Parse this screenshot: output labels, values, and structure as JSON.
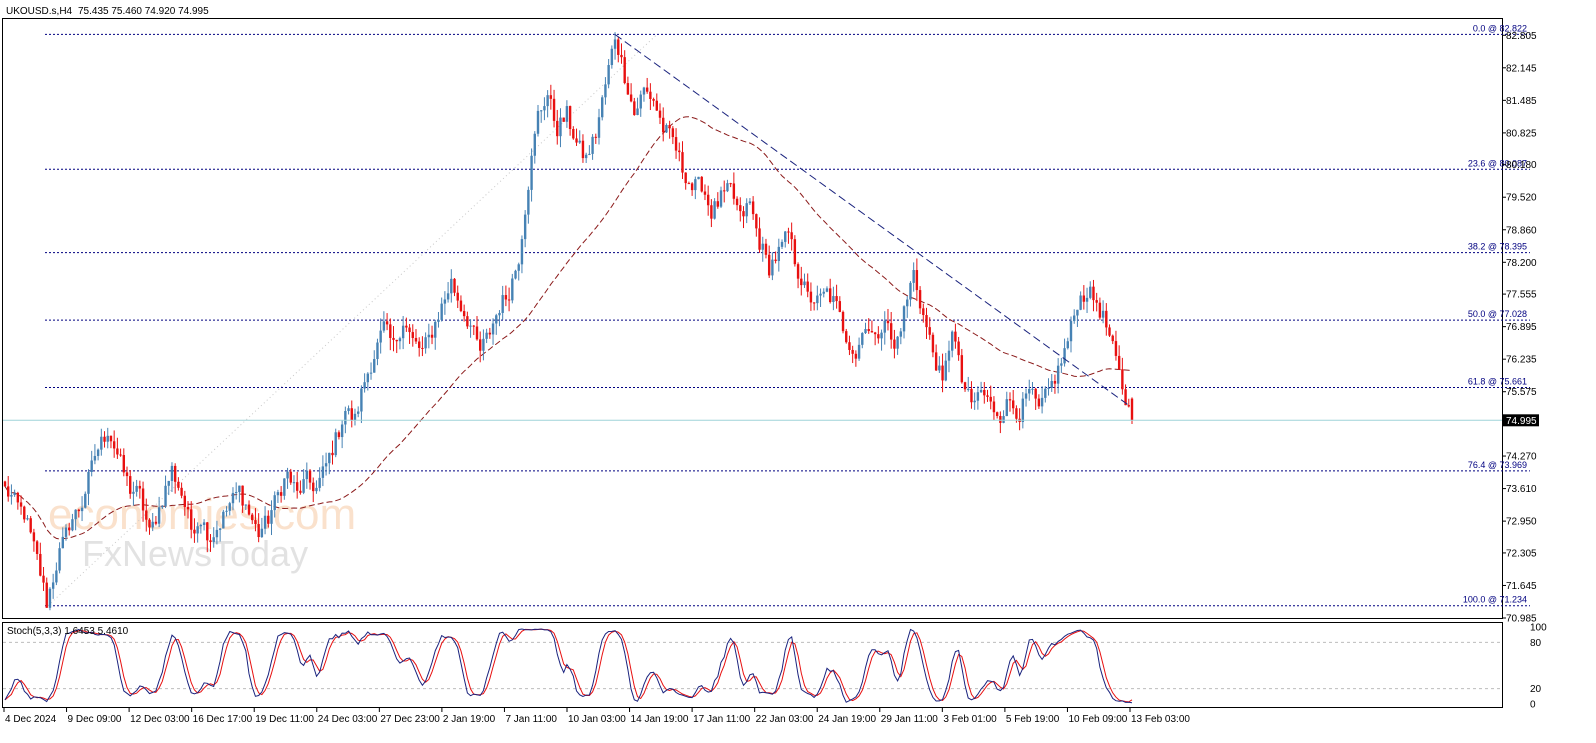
{
  "header": {
    "symbol": "UKOUSD.s,H4",
    "ohlc": "75.435 75.460 74.920 74.995"
  },
  "watermark": {
    "brand": "economies.com",
    "sub": "FxNewsToday"
  },
  "chart_data": {
    "type": "candlestick",
    "ylim": [
      70.985,
      83.135
    ],
    "y_ticks": [
      "82.805",
      "82.145",
      "81.485",
      "80.825",
      "80.180",
      "79.520",
      "78.860",
      "78.200",
      "77.555",
      "76.895",
      "76.235",
      "75.575",
      "74.270",
      "73.610",
      "72.950",
      "72.305",
      "71.645",
      "70.985"
    ],
    "current_price": {
      "value": 74.995,
      "label": "74.995"
    },
    "x_ticks": [
      "4 Dec 2024",
      "9 Dec 09:00",
      "12 Dec 03:00",
      "16 Dec 17:00",
      "19 Dec 11:00",
      "24 Dec 03:00",
      "27 Dec 23:00",
      "2 Jan 19:00",
      "7 Jan 11:00",
      "10 Jan 03:00",
      "14 Jan 19:00",
      "17 Jan 11:00",
      "22 Jan 03:00",
      "24 Jan 19:00",
      "29 Jan 11:00",
      "3 Feb 01:00",
      "5 Feb 19:00",
      "10 Feb 09:00",
      "13 Feb 03:00"
    ],
    "fib_levels": [
      {
        "value": 82.822,
        "label": "0.0 @ 82.822"
      },
      {
        "value": 80.087,
        "label": "23.6 @ 80.087"
      },
      {
        "value": 78.395,
        "label": "38.2 @ 78.395"
      },
      {
        "value": 77.028,
        "label": "50.0 @ 77.028"
      },
      {
        "value": 75.661,
        "label": "61.8 @ 75.661"
      },
      {
        "value": 73.969,
        "label": "76.4 @ 73.969"
      },
      {
        "value": 71.234,
        "label": "100.0 @ 71.234"
      }
    ],
    "path_points": [
      [
        0,
        73.6
      ],
      [
        6,
        73.1
      ],
      [
        10,
        72.2
      ],
      [
        13,
        71.3
      ],
      [
        17,
        72.3
      ],
      [
        20,
        72.9
      ],
      [
        24,
        73.3
      ],
      [
        28,
        74.3
      ],
      [
        32,
        74.8
      ],
      [
        35,
        74.3
      ],
      [
        39,
        73.6
      ],
      [
        42,
        73.5
      ],
      [
        45,
        72.7
      ],
      [
        48,
        73.2
      ],
      [
        52,
        74.0
      ],
      [
        55,
        73.5
      ],
      [
        58,
        72.8
      ],
      [
        61,
        73.0
      ],
      [
        64,
        72.6
      ],
      [
        67,
        72.9
      ],
      [
        70,
        73.3
      ],
      [
        73,
        73.6
      ],
      [
        76,
        73.1
      ],
      [
        79,
        72.7
      ],
      [
        82,
        73.0
      ],
      [
        85,
        73.5
      ],
      [
        88,
        73.9
      ],
      [
        91,
        73.5
      ],
      [
        94,
        73.8
      ],
      [
        97,
        73.6
      ],
      [
        100,
        74.1
      ],
      [
        103,
        74.6
      ],
      [
        106,
        75.2
      ],
      [
        109,
        75.0
      ],
      [
        112,
        75.8
      ],
      [
        115,
        76.3
      ],
      [
        118,
        76.9
      ],
      [
        121,
        76.5
      ],
      [
        124,
        77.0
      ],
      [
        127,
        76.6
      ],
      [
        130,
        76.4
      ],
      [
        133,
        76.8
      ],
      [
        136,
        77.3
      ],
      [
        139,
        77.8
      ],
      [
        142,
        77.3
      ],
      [
        145,
        76.9
      ],
      [
        148,
        76.4
      ],
      [
        151,
        76.8
      ],
      [
        154,
        77.3
      ],
      [
        157,
        77.6
      ],
      [
        160,
        78.3
      ],
      [
        163,
        79.8
      ],
      [
        166,
        81.2
      ],
      [
        169,
        81.6
      ],
      [
        172,
        80.9
      ],
      [
        175,
        81.2
      ],
      [
        178,
        80.6
      ],
      [
        181,
        80.3
      ],
      [
        184,
        80.8
      ],
      [
        187,
        81.8
      ],
      [
        190,
        82.8
      ],
      [
        193,
        82.0
      ],
      [
        196,
        81.2
      ],
      [
        199,
        81.7
      ],
      [
        202,
        81.5
      ],
      [
        205,
        80.9
      ],
      [
        208,
        80.7
      ],
      [
        211,
        80.1
      ],
      [
        214,
        79.7
      ],
      [
        217,
        79.8
      ],
      [
        220,
        79.2
      ],
      [
        223,
        79.5
      ],
      [
        226,
        79.7
      ],
      [
        229,
        79.1
      ],
      [
        232,
        79.4
      ],
      [
        235,
        78.6
      ],
      [
        238,
        78.1
      ],
      [
        241,
        78.4
      ],
      [
        244,
        78.8
      ],
      [
        247,
        78.0
      ],
      [
        250,
        77.5
      ],
      [
        253,
        77.4
      ],
      [
        256,
        77.6
      ],
      [
        259,
        77.3
      ],
      [
        262,
        76.7
      ],
      [
        265,
        76.3
      ],
      [
        268,
        77.0
      ],
      [
        271,
        76.6
      ],
      [
        274,
        77.1
      ],
      [
        277,
        76.4
      ],
      [
        280,
        77.2
      ],
      [
        283,
        78.0
      ],
      [
        286,
        77.1
      ],
      [
        289,
        76.4
      ],
      [
        292,
        75.7
      ],
      [
        295,
        76.9
      ],
      [
        298,
        75.8
      ],
      [
        301,
        75.3
      ],
      [
        304,
        75.6
      ],
      [
        307,
        75.3
      ],
      [
        310,
        75.1
      ],
      [
        313,
        75.4
      ],
      [
        316,
        75.1
      ],
      [
        319,
        75.6
      ],
      [
        322,
        75.2
      ],
      [
        325,
        75.6
      ],
      [
        328,
        76.0
      ],
      [
        331,
        76.6
      ],
      [
        334,
        77.4
      ],
      [
        337,
        77.6
      ],
      [
        340,
        77.4
      ],
      [
        343,
        76.9
      ],
      [
        346,
        76.2
      ],
      [
        349,
        75.4
      ],
      [
        351,
        74.995
      ]
    ],
    "stoch_label": "Stoch(5,3,3) 1.6453 5.4610",
    "stoch_ticks": [
      "100",
      "80",
      "20",
      "0"
    ],
    "stoch_levels": [
      80,
      20
    ]
  }
}
